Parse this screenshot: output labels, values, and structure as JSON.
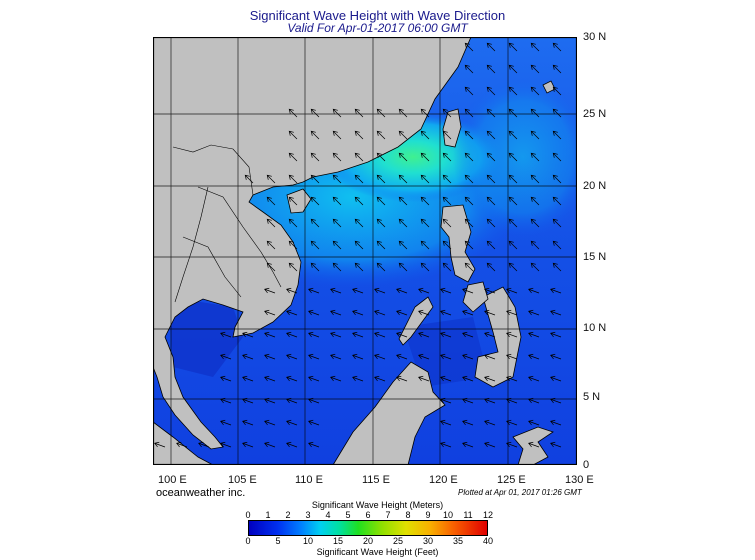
{
  "title": "Significant Wave Height with Wave Direction",
  "subtitle": "Valid For Apr-01-2017 06:00 GMT",
  "lat_labels": [
    "30 N",
    "25 N",
    "20 N",
    "15 N",
    "10 N",
    "5 N",
    "0"
  ],
  "lon_labels": [
    "100 E",
    "105 E",
    "110 E",
    "115 E",
    "120 E",
    "125 E",
    "130 E"
  ],
  "credit": "oceanweather inc.",
  "plotted": "Plotted at Apr 01, 2017 01:26 GMT",
  "colorbar": {
    "meters_title": "Significant Wave Height (Meters)",
    "feet_title": "Significant Wave Height (Feet)",
    "meters_ticks": [
      "0",
      "1",
      "2",
      "3",
      "4",
      "5",
      "6",
      "7",
      "8",
      "9",
      "10",
      "11",
      "12"
    ],
    "feet_ticks": [
      "0",
      "5",
      "10",
      "15",
      "20",
      "25",
      "30",
      "35",
      "40"
    ]
  },
  "colors": {
    "land": "#c0c0c0",
    "title": "#1a1a8c",
    "sea_low": "#1040e8",
    "sea_mid": "#18c8f0",
    "sea_high": "#30e880"
  }
}
